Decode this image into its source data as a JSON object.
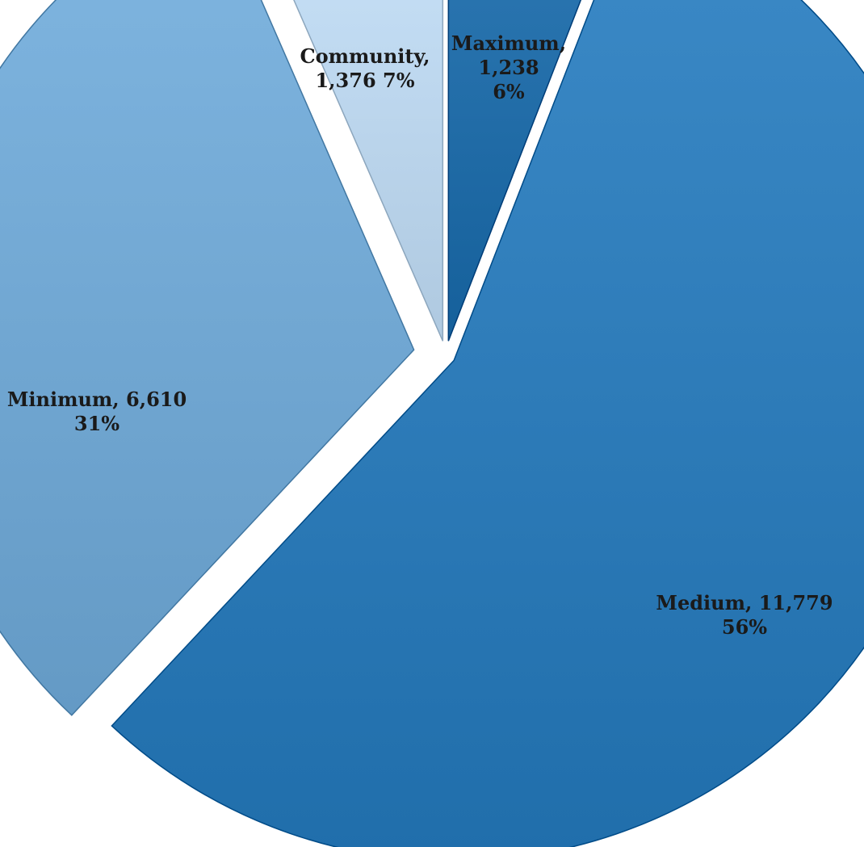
{
  "chart_data": {
    "type": "pie",
    "exploded": true,
    "slices": [
      {
        "name": "Maximum",
        "value": 1238,
        "percent": "6%",
        "label_lines": [
          "Maximum,",
          "1,238",
          "6%"
        ],
        "color": "#1f6aa5"
      },
      {
        "name": "Medium",
        "value": 11779,
        "percent": "56%",
        "label_lines": [
          "Medium, 11,779",
          "56%"
        ],
        "color": "#2a78b5"
      },
      {
        "name": "Minimum",
        "value": 6610,
        "percent": "31%",
        "label_lines": [
          "Minimum, 6,610",
          "31%"
        ],
        "color": "#6ea4cf"
      },
      {
        "name": "Community",
        "value": 1376,
        "percent": "7%",
        "label_lines": [
          "Community,",
          "1,376 7%"
        ],
        "color": "#b9d3ea"
      }
    ]
  }
}
